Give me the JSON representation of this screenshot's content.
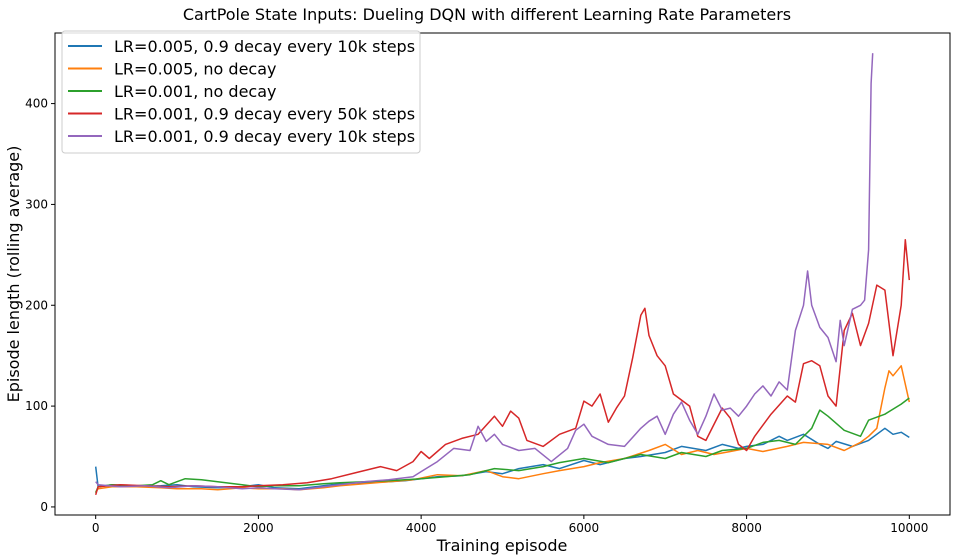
{
  "chart_data": {
    "type": "line",
    "title": "CartPole State Inputs: Dueling DQN with different Learning Rate Parameters",
    "xlabel": "Training episode",
    "ylabel": "Episode length (rolling average)",
    "xlim": [
      -500,
      10500
    ],
    "ylim": [
      -8,
      470
    ],
    "xticks": [
      0,
      2000,
      4000,
      6000,
      8000,
      10000
    ],
    "yticks": [
      0,
      100,
      200,
      300,
      400
    ],
    "grid": false,
    "legend_position": "top-left",
    "series": [
      {
        "name": "LR=0.005, 0.9 decay every 10k steps",
        "color": "#1f77b4",
        "points": [
          [
            0,
            40
          ],
          [
            30,
            20
          ],
          [
            200,
            22
          ],
          [
            500,
            20
          ],
          [
            800,
            21
          ],
          [
            1000,
            22
          ],
          [
            1200,
            20
          ],
          [
            1500,
            19
          ],
          [
            1800,
            20
          ],
          [
            2000,
            22
          ],
          [
            2200,
            19
          ],
          [
            2500,
            18
          ],
          [
            2800,
            21
          ],
          [
            3000,
            23
          ],
          [
            3300,
            24
          ],
          [
            3600,
            25
          ],
          [
            3800,
            26
          ],
          [
            4000,
            28
          ],
          [
            4200,
            30
          ],
          [
            4500,
            31
          ],
          [
            4800,
            35
          ],
          [
            5000,
            33
          ],
          [
            5200,
            38
          ],
          [
            5500,
            42
          ],
          [
            5700,
            38
          ],
          [
            6000,
            46
          ],
          [
            6200,
            42
          ],
          [
            6500,
            48
          ],
          [
            6700,
            50
          ],
          [
            7000,
            54
          ],
          [
            7200,
            60
          ],
          [
            7500,
            56
          ],
          [
            7700,
            62
          ],
          [
            7900,
            58
          ],
          [
            8000,
            60
          ],
          [
            8200,
            62
          ],
          [
            8400,
            70
          ],
          [
            8500,
            66
          ],
          [
            8700,
            72
          ],
          [
            8900,
            62
          ],
          [
            9000,
            58
          ],
          [
            9100,
            65
          ],
          [
            9300,
            60
          ],
          [
            9500,
            66
          ],
          [
            9700,
            78
          ],
          [
            9800,
            72
          ],
          [
            9900,
            74
          ],
          [
            10000,
            69
          ]
        ]
      },
      {
        "name": "LR=0.005, no decay",
        "color": "#ff7f0e",
        "points": [
          [
            0,
            15
          ],
          [
            30,
            18
          ],
          [
            200,
            20
          ],
          [
            500,
            20
          ],
          [
            800,
            19
          ],
          [
            1000,
            18
          ],
          [
            1300,
            18
          ],
          [
            1500,
            17
          ],
          [
            1800,
            19
          ],
          [
            2000,
            18
          ],
          [
            2300,
            18
          ],
          [
            2500,
            17
          ],
          [
            2800,
            19
          ],
          [
            3000,
            21
          ],
          [
            3300,
            23
          ],
          [
            3600,
            25
          ],
          [
            3900,
            27
          ],
          [
            4200,
            32
          ],
          [
            4500,
            31
          ],
          [
            4800,
            36
          ],
          [
            5000,
            30
          ],
          [
            5200,
            28
          ],
          [
            5500,
            33
          ],
          [
            5700,
            36
          ],
          [
            6000,
            40
          ],
          [
            6200,
            44
          ],
          [
            6500,
            48
          ],
          [
            6800,
            56
          ],
          [
            7000,
            62
          ],
          [
            7200,
            52
          ],
          [
            7400,
            56
          ],
          [
            7600,
            52
          ],
          [
            7800,
            55
          ],
          [
            8000,
            58
          ],
          [
            8200,
            55
          ],
          [
            8500,
            60
          ],
          [
            8700,
            64
          ],
          [
            9000,
            62
          ],
          [
            9200,
            56
          ],
          [
            9400,
            64
          ],
          [
            9500,
            70
          ],
          [
            9600,
            78
          ],
          [
            9700,
            118
          ],
          [
            9750,
            135
          ],
          [
            9800,
            130
          ],
          [
            9900,
            140
          ],
          [
            10000,
            104
          ]
        ]
      },
      {
        "name": "LR=0.001, no decay",
        "color": "#2ca02c",
        "points": [
          [
            0,
            14
          ],
          [
            30,
            20
          ],
          [
            200,
            22
          ],
          [
            500,
            21
          ],
          [
            700,
            22
          ],
          [
            800,
            26
          ],
          [
            900,
            22
          ],
          [
            1000,
            25
          ],
          [
            1100,
            28
          ],
          [
            1300,
            27
          ],
          [
            1500,
            25
          ],
          [
            1800,
            22
          ],
          [
            2000,
            20
          ],
          [
            2200,
            21
          ],
          [
            2500,
            21
          ],
          [
            2800,
            23
          ],
          [
            3000,
            24
          ],
          [
            3300,
            25
          ],
          [
            3600,
            26
          ],
          [
            4000,
            28
          ],
          [
            4300,
            30
          ],
          [
            4600,
            32
          ],
          [
            4900,
            38
          ],
          [
            5200,
            36
          ],
          [
            5500,
            40
          ],
          [
            5700,
            44
          ],
          [
            6000,
            48
          ],
          [
            6300,
            44
          ],
          [
            6500,
            48
          ],
          [
            6700,
            52
          ],
          [
            7000,
            48
          ],
          [
            7200,
            54
          ],
          [
            7500,
            50
          ],
          [
            7700,
            56
          ],
          [
            8000,
            58
          ],
          [
            8200,
            64
          ],
          [
            8400,
            66
          ],
          [
            8600,
            62
          ],
          [
            8800,
            78
          ],
          [
            8900,
            96
          ],
          [
            9000,
            90
          ],
          [
            9200,
            76
          ],
          [
            9400,
            70
          ],
          [
            9500,
            86
          ],
          [
            9700,
            92
          ],
          [
            9900,
            102
          ],
          [
            10000,
            108
          ]
        ]
      },
      {
        "name": "LR=0.001, 0.9 decay every 50k steps",
        "color": "#d62728",
        "points": [
          [
            0,
            12
          ],
          [
            30,
            20
          ],
          [
            300,
            22
          ],
          [
            600,
            21
          ],
          [
            900,
            20
          ],
          [
            1200,
            21
          ],
          [
            1500,
            20
          ],
          [
            1800,
            20
          ],
          [
            2000,
            21
          ],
          [
            2300,
            22
          ],
          [
            2600,
            24
          ],
          [
            2900,
            28
          ],
          [
            3200,
            34
          ],
          [
            3500,
            40
          ],
          [
            3700,
            36
          ],
          [
            3900,
            45
          ],
          [
            4000,
            55
          ],
          [
            4100,
            48
          ],
          [
            4300,
            62
          ],
          [
            4500,
            68
          ],
          [
            4700,
            72
          ],
          [
            4900,
            90
          ],
          [
            5000,
            80
          ],
          [
            5100,
            95
          ],
          [
            5200,
            88
          ],
          [
            5300,
            66
          ],
          [
            5500,
            60
          ],
          [
            5700,
            72
          ],
          [
            5900,
            78
          ],
          [
            6000,
            105
          ],
          [
            6100,
            100
          ],
          [
            6200,
            112
          ],
          [
            6300,
            84
          ],
          [
            6400,
            98
          ],
          [
            6500,
            110
          ],
          [
            6600,
            148
          ],
          [
            6700,
            190
          ],
          [
            6750,
            197
          ],
          [
            6800,
            170
          ],
          [
            6900,
            150
          ],
          [
            7000,
            140
          ],
          [
            7100,
            112
          ],
          [
            7300,
            100
          ],
          [
            7400,
            70
          ],
          [
            7500,
            66
          ],
          [
            7700,
            98
          ],
          [
            7800,
            88
          ],
          [
            7900,
            62
          ],
          [
            8000,
            56
          ],
          [
            8100,
            70
          ],
          [
            8300,
            92
          ],
          [
            8500,
            110
          ],
          [
            8600,
            104
          ],
          [
            8700,
            142
          ],
          [
            8800,
            145
          ],
          [
            8900,
            140
          ],
          [
            9000,
            110
          ],
          [
            9100,
            100
          ],
          [
            9200,
            175
          ],
          [
            9300,
            192
          ],
          [
            9400,
            160
          ],
          [
            9500,
            182
          ],
          [
            9600,
            220
          ],
          [
            9700,
            215
          ],
          [
            9800,
            150
          ],
          [
            9900,
            200
          ],
          [
            9950,
            265
          ],
          [
            10000,
            225
          ]
        ]
      },
      {
        "name": "LR=0.001, 0.9 decay every 10k steps",
        "color": "#9467bd",
        "points": [
          [
            0,
            25
          ],
          [
            30,
            22
          ],
          [
            300,
            20
          ],
          [
            600,
            21
          ],
          [
            900,
            19
          ],
          [
            1200,
            21
          ],
          [
            1500,
            20
          ],
          [
            1800,
            18
          ],
          [
            2000,
            19
          ],
          [
            2200,
            18
          ],
          [
            2500,
            17
          ],
          [
            2800,
            20
          ],
          [
            3000,
            22
          ],
          [
            3300,
            25
          ],
          [
            3600,
            27
          ],
          [
            3900,
            30
          ],
          [
            4000,
            35
          ],
          [
            4200,
            45
          ],
          [
            4400,
            58
          ],
          [
            4600,
            56
          ],
          [
            4700,
            80
          ],
          [
            4800,
            65
          ],
          [
            4900,
            72
          ],
          [
            5000,
            62
          ],
          [
            5200,
            56
          ],
          [
            5400,
            58
          ],
          [
            5600,
            45
          ],
          [
            5800,
            58
          ],
          [
            5900,
            76
          ],
          [
            6000,
            82
          ],
          [
            6100,
            70
          ],
          [
            6300,
            62
          ],
          [
            6500,
            60
          ],
          [
            6700,
            78
          ],
          [
            6800,
            85
          ],
          [
            6900,
            90
          ],
          [
            7000,
            72
          ],
          [
            7100,
            92
          ],
          [
            7200,
            104
          ],
          [
            7300,
            86
          ],
          [
            7400,
            72
          ],
          [
            7500,
            90
          ],
          [
            7600,
            112
          ],
          [
            7700,
            96
          ],
          [
            7800,
            98
          ],
          [
            7900,
            90
          ],
          [
            8000,
            100
          ],
          [
            8100,
            112
          ],
          [
            8200,
            120
          ],
          [
            8300,
            110
          ],
          [
            8400,
            124
          ],
          [
            8500,
            116
          ],
          [
            8600,
            175
          ],
          [
            8700,
            200
          ],
          [
            8750,
            234
          ],
          [
            8800,
            200
          ],
          [
            8900,
            178
          ],
          [
            9000,
            168
          ],
          [
            9100,
            144
          ],
          [
            9150,
            185
          ],
          [
            9200,
            160
          ],
          [
            9300,
            196
          ],
          [
            9400,
            200
          ],
          [
            9450,
            205
          ],
          [
            9500,
            255
          ],
          [
            9530,
            420
          ],
          [
            9550,
            450
          ]
        ]
      }
    ]
  }
}
